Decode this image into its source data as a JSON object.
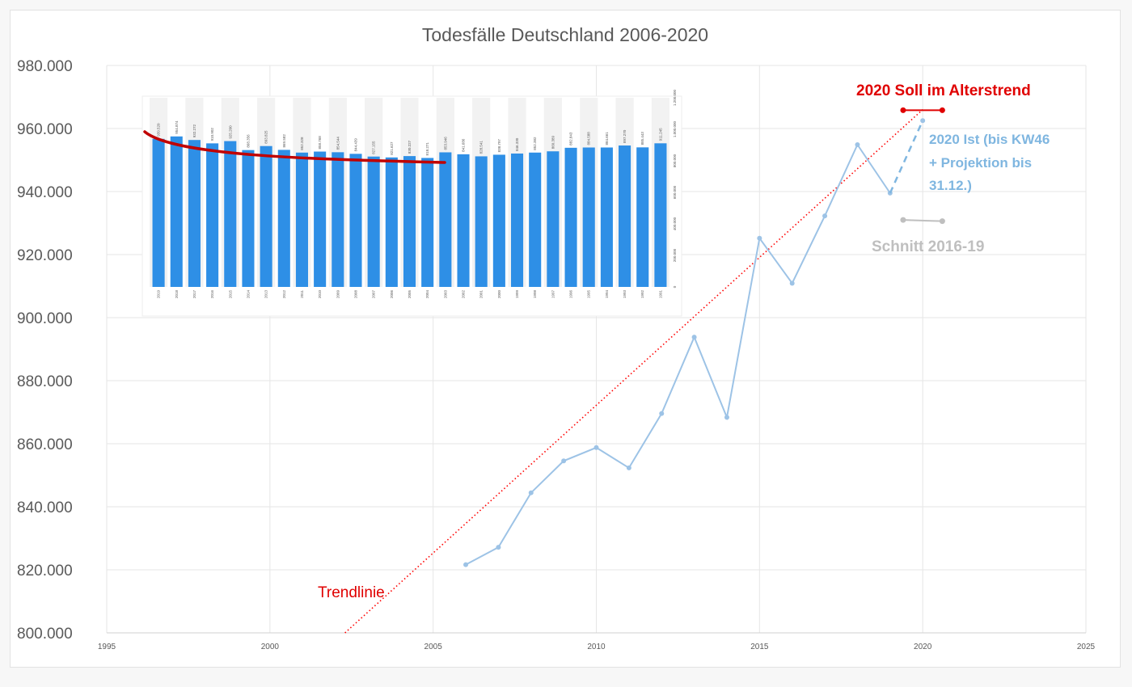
{
  "chart_data": [
    {
      "type": "line",
      "title": "Todesfälle Deutschland 2006-2020",
      "xlim": [
        1995,
        2025
      ],
      "ylim": [
        800000,
        980000
      ],
      "x_ticks": [
        1995,
        2000,
        2005,
        2010,
        2015,
        2020,
        2025
      ],
      "y_ticks": [
        800000,
        820000,
        840000,
        860000,
        880000,
        900000,
        920000,
        940000,
        960000,
        980000
      ],
      "y_tick_labels": [
        "800.000",
        "820.000",
        "840.000",
        "860.000",
        "880.000",
        "900.000",
        "920.000",
        "940.000",
        "960.000",
        "980.000"
      ],
      "grid": true,
      "colors": {
        "series": "#9dc3e6",
        "trend": "#ff0000",
        "soll": "#e00000",
        "avg": "#bfbfbf",
        "proj": "#7fb6e0"
      },
      "series": [
        {
          "x": [
            2006,
            2007,
            2008,
            2009,
            2010,
            2011,
            2012,
            2013,
            2014,
            2015,
            2016,
            2017,
            2018,
            2019
          ],
          "values": [
            821627,
            827155,
            844439,
            854544,
            858768,
            852328,
            869582,
            893825,
            868356,
            925200,
            910902,
            932272,
            954874,
            939520
          ]
        }
      ],
      "projection": {
        "x": [
          2019,
          2020
        ],
        "values": [
          939520,
          962500
        ]
      },
      "trendline": {
        "x": [
          2002.3,
          2020
        ],
        "values": [
          800000,
          966000
        ]
      },
      "soll_2020": {
        "x": [
          2019.4,
          2020.6
        ],
        "values": [
          965800,
          965800
        ]
      },
      "avg_2016_19": {
        "x": [
          2019.4,
          2020.6
        ],
        "values": [
          931000,
          930600
        ]
      },
      "annotations": {
        "soll": "2020 Soll im Alterstrend",
        "ist_line1": "2020 Ist (bis KW46",
        "ist_line2": "+ Projektion bis",
        "ist_line3": "31.12.)",
        "avg": "Schnitt 2016-19",
        "trend": "Trendlinie"
      }
    },
    {
      "type": "bar",
      "categories": [
        "2019",
        "2018",
        "2017",
        "2016",
        "2015",
        "2014",
        "2013",
        "2012",
        "2011",
        "2010",
        "2009",
        "2008",
        "2007",
        "2006",
        "2005",
        "2004",
        "2003",
        "2002",
        "2001",
        "2000",
        "1999",
        "1998",
        "1997",
        "1996",
        "1995",
        "1994",
        "1993",
        "1992",
        "1991"
      ],
      "values": [
        939520,
        954874,
        932272,
        910902,
        925200,
        868356,
        893825,
        869582,
        852328,
        858768,
        854544,
        844439,
        827155,
        821627,
        830227,
        818271,
        853946,
        841686,
        828541,
        838797,
        846330,
        852382,
        860389,
        882843,
        884588,
        884661,
        897270,
        885443,
        911245
      ],
      "value_labels": [
        "939.520",
        "954.874",
        "932.272",
        "910.902",
        "925.200",
        "868.356",
        "893.825",
        "869.582",
        "852.328",
        "858.768",
        "854.544",
        "844.439",
        "827.155",
        "821.627",
        "830.227",
        "818.271",
        "853.946",
        "841.686",
        "828.541",
        "838.797",
        "846.330",
        "852.382",
        "860.389",
        "882.843",
        "884.588",
        "884.661",
        "897.270",
        "885.443",
        "911.245"
      ],
      "ylim": [
        0,
        1200000
      ],
      "y_tick_labels": [
        "0",
        "200.000",
        "400.000",
        "600.000",
        "800.000",
        "1.000.000",
        "1.200.000"
      ],
      "colors": {
        "bar": "#2e8fe6",
        "trend": "#c00000"
      }
    }
  ]
}
